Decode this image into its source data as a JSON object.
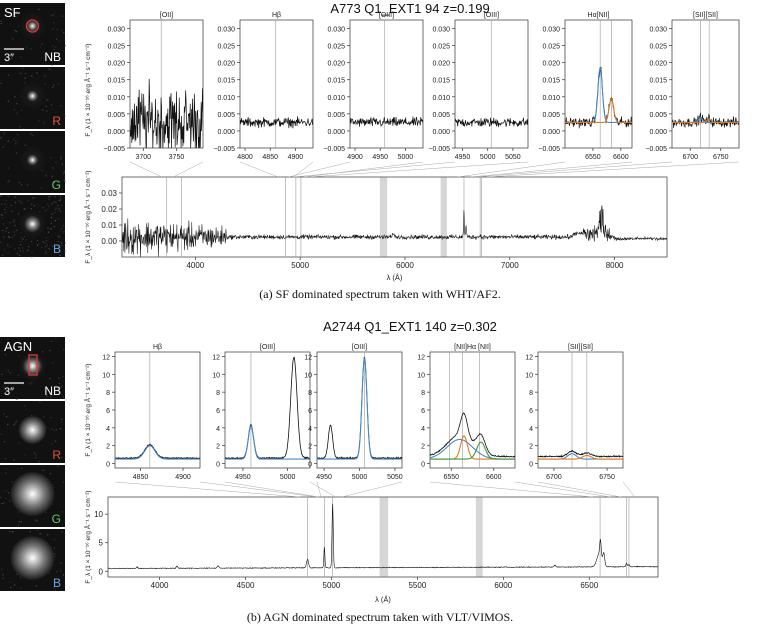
{
  "panel_a": {
    "title": "A773 Q1_EXT1 94 z=0.199",
    "caption": "(a) SF dominated spectrum taken with WHT/AF2.",
    "thumb_labels": {
      "type": "SF",
      "scale": "3″",
      "nb": "NB",
      "r": "R",
      "g": "G",
      "b": "B"
    }
  },
  "panel_b": {
    "title": "A2744 Q1_EXT1 140 z=0.302",
    "caption": "(b) AGN dominated spectrum taken with VLT/VIMOS.",
    "thumb_labels": {
      "type": "AGN",
      "scale": "3″",
      "nb": "NB",
      "r": "R",
      "g": "G",
      "b": "B"
    }
  },
  "colors": {
    "spectrum": "#111111",
    "fit_blue": "#4a88c7",
    "fit_orange": "#e07a1f",
    "fit_green": "#3a9a3a",
    "sky_band": "#d6d6d6",
    "r_label": "#e0533a",
    "g_label": "#6ac46a",
    "b_label": "#6aa6e0",
    "aperture": "#e03a3a"
  },
  "chart_data": [
    {
      "type": "line",
      "id": "a-main",
      "xlabel": "λ (Å)",
      "ylabel": "F_λ (1 × 10⁻¹⁶ erg Å⁻¹ s⁻¹ cm⁻²)",
      "xlim": [
        3300,
        8500
      ],
      "ylim": [
        -0.01,
        0.04
      ],
      "xticks": [
        4000,
        5000,
        6000,
        7000,
        8000
      ],
      "yticks": [
        0.0,
        0.01,
        0.02,
        0.03
      ],
      "yticklabels": [
        "0.00",
        "0.01",
        "0.02",
        "0.03"
      ],
      "sky_bands": [
        [
          5760,
          5830
        ],
        [
          6340,
          6400
        ]
      ],
      "lines": [
        3727,
        3869,
        4861,
        4959,
        5007,
        6563,
        6717,
        6731
      ]
    },
    {
      "type": "line",
      "id": "a-z1",
      "title": "[OII]",
      "xlim": [
        3680,
        3790
      ],
      "ylim": [
        -0.005,
        0.0325
      ],
      "xticks": [
        3700,
        3750
      ],
      "yticks": [
        -0.005,
        0.0,
        0.005,
        0.01,
        0.015,
        0.02,
        0.025,
        0.03
      ],
      "yticklabels": [
        "−0.005",
        "0.000",
        "0.005",
        "0.010",
        "0.015",
        "0.020",
        "0.025",
        "0.030"
      ],
      "lines": [
        3727
      ]
    },
    {
      "type": "line",
      "id": "a-z2",
      "title": "Hβ",
      "xlim": [
        4790,
        4935
      ],
      "ylim": [
        -0.005,
        0.0325
      ],
      "xticks": [
        4800,
        4850,
        4900
      ],
      "lines": [
        4861
      ]
    },
    {
      "type": "line",
      "id": "a-z3",
      "title": "[OIII]",
      "xlim": [
        4890,
        5035
      ],
      "ylim": [
        -0.005,
        0.0325
      ],
      "xticks": [
        4900,
        4950,
        5000
      ],
      "lines": [
        4959
      ]
    },
    {
      "type": "line",
      "id": "a-z4",
      "title": "[OIII]",
      "xlim": [
        4935,
        5080
      ],
      "ylim": [
        -0.005,
        0.0325
      ],
      "xticks": [
        4950,
        5000,
        5050
      ],
      "lines": [
        5007
      ]
    },
    {
      "type": "line",
      "id": "a-z5",
      "title": "Hα[NII]",
      "xlim": [
        6500,
        6620
      ],
      "ylim": [
        -0.005,
        0.0325
      ],
      "xticks": [
        6550,
        6600
      ],
      "lines": [
        6563,
        6583
      ],
      "fits": [
        {
          "color": "fit_blue",
          "center": 6563,
          "amp": 0.016,
          "sigma": 4
        },
        {
          "color": "fit_orange",
          "center": 6583,
          "amp": 0.007,
          "sigma": 4
        }
      ]
    },
    {
      "type": "line",
      "id": "a-z6",
      "title": "[SII][SII]",
      "xlim": [
        6670,
        6780
      ],
      "ylim": [
        -0.005,
        0.0325
      ],
      "xticks": [
        6700,
        6750
      ],
      "lines": [
        6717,
        6731
      ],
      "fits": [
        {
          "color": "fit_blue",
          "center": 6717,
          "amp": 0.0015,
          "sigma": 3
        },
        {
          "color": "fit_orange",
          "center": 6731,
          "amp": 0.001,
          "sigma": 3
        }
      ]
    },
    {
      "type": "line",
      "id": "b-main",
      "xlabel": "λ (Å)",
      "ylabel": "F_λ (1 × 10⁻¹⁶ erg Å⁻¹ s⁻¹ cm⁻²)",
      "xlim": [
        3700,
        6900
      ],
      "ylim": [
        -1,
        13
      ],
      "xticks": [
        4000,
        4500,
        5000,
        5500,
        6000,
        6500
      ],
      "yticks": [
        0,
        5,
        10
      ],
      "sky_bands": [
        [
          5280,
          5330
        ],
        [
          5840,
          5880
        ]
      ],
      "lines": [
        4861,
        4959,
        5007,
        6563,
        6717,
        6731
      ]
    },
    {
      "type": "line",
      "id": "b-z1",
      "title": "Hβ",
      "xlim": [
        4820,
        4920
      ],
      "ylim": [
        -0.5,
        12.5
      ],
      "xticks": [
        4850,
        4900
      ],
      "yticks": [
        0,
        2,
        4,
        6,
        8,
        10,
        12
      ],
      "lines": [
        4861
      ],
      "fits": [
        {
          "color": "fit_blue",
          "center": 4861,
          "amp": 1.5,
          "sigma": 6
        }
      ]
    },
    {
      "type": "line",
      "id": "b-z2",
      "title": "[OIII]",
      "xlim": [
        4930,
        5025
      ],
      "ylim": [
        -0.5,
        12.5
      ],
      "xticks": [
        4950,
        5000
      ],
      "lines": [
        4959
      ],
      "fits": [
        {
          "color": "fit_blue",
          "center": 4959,
          "amp": 3.7,
          "sigma": 3
        }
      ]
    },
    {
      "type": "line",
      "id": "b-z3",
      "title": "[OIII]",
      "xlim": [
        4940,
        5060
      ],
      "ylim": [
        -0.5,
        12.5
      ],
      "xticks": [
        4950,
        5000,
        5050
      ],
      "lines": [
        5007
      ],
      "fits": [
        {
          "color": "fit_blue",
          "center": 5007,
          "amp": 11.3,
          "sigma": 3.5
        }
      ]
    },
    {
      "type": "line",
      "id": "b-z4",
      "title": "[NII]Hα [NII]",
      "xlim": [
        6525,
        6625
      ],
      "ylim": [
        -0.5,
        12.5
      ],
      "xticks": [
        6550,
        6600
      ],
      "lines": [
        6548,
        6563,
        6583
      ],
      "fits": [
        {
          "color": "fit_blue",
          "center": 6560,
          "amp": 2.2,
          "sigma": 15
        },
        {
          "color": "fit_orange",
          "center": 6565,
          "amp": 2.6,
          "sigma": 4
        },
        {
          "color": "fit_green",
          "center": 6585,
          "amp": 1.9,
          "sigma": 5
        }
      ]
    },
    {
      "type": "line",
      "id": "b-z5",
      "title": "[SII][SII]",
      "xlim": [
        6685,
        6765
      ],
      "ylim": [
        -0.5,
        12.5
      ],
      "xticks": [
        6700,
        6750
      ],
      "lines": [
        6717,
        6731
      ],
      "fits": [
        {
          "color": "fit_blue",
          "center": 6717,
          "amp": 0.6,
          "sigma": 4
        },
        {
          "color": "fit_orange",
          "center": 6731,
          "amp": 0.4,
          "sigma": 4
        }
      ]
    }
  ]
}
